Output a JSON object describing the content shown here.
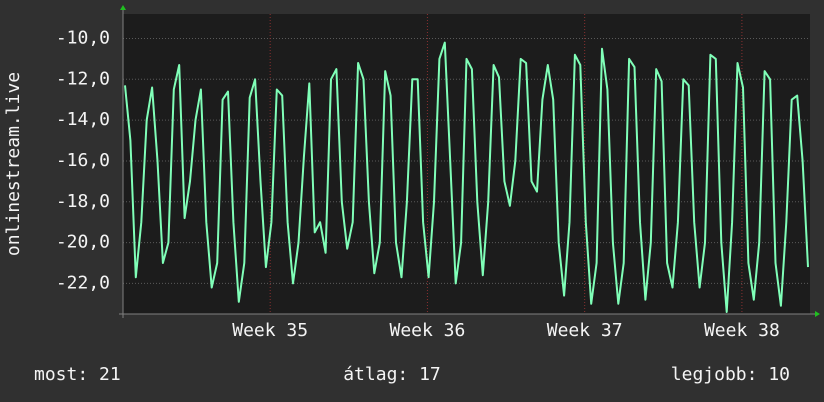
{
  "chart_data": {
    "type": "line",
    "ylabel": "onlinestream.live",
    "xlim": [
      34.064,
      38.433
    ],
    "xticks": [
      {
        "value": 35,
        "label": "Week 35"
      },
      {
        "value": 36,
        "label": "Week 36"
      },
      {
        "value": 37,
        "label": "Week 37"
      },
      {
        "value": 38,
        "label": "Week 38"
      }
    ],
    "ylim": [
      -23.5,
      -8.8
    ],
    "yticks": [
      {
        "value": -22,
        "label": "-22,0"
      },
      {
        "value": -20,
        "label": "-20,0"
      },
      {
        "value": -18,
        "label": "-18,0"
      },
      {
        "value": -16,
        "label": "-16,0"
      },
      {
        "value": -14,
        "label": "-14,0"
      },
      {
        "value": -12,
        "label": "-12,0"
      },
      {
        "value": -10,
        "label": "-10,0"
      }
    ],
    "grid": true,
    "series": [
      {
        "color": "#80ffb8",
        "values": [
          -12.3,
          -15,
          -21.7,
          -19,
          -14,
          -12.4,
          -16,
          -21,
          -20,
          -12.5,
          -11.3,
          -18.8,
          -17,
          -14,
          -12.5,
          -19,
          -22.2,
          -21,
          -13,
          -12.6,
          -19,
          -22.9,
          -21,
          -12.9,
          -12,
          -17,
          -21.2,
          -19,
          -12.5,
          -12.8,
          -19,
          -22,
          -20,
          -15.8,
          -12.2,
          -19.5,
          -19,
          -20.5,
          -12,
          -11.5,
          -18,
          -20.3,
          -19,
          -11.2,
          -12,
          -18,
          -21.5,
          -20,
          -11.6,
          -12.8,
          -20,
          -21.7,
          -18,
          -12,
          -12,
          -19,
          -21.7,
          -18,
          -11,
          -10.2,
          -16,
          -22,
          -20,
          -11,
          -11.5,
          -18,
          -21.6,
          -18,
          -11.3,
          -11.9,
          -17,
          -18.2,
          -16,
          -11,
          -11.2,
          -17,
          -17.5,
          -13,
          -11.3,
          -13,
          -20,
          -22.6,
          -19,
          -10.8,
          -11.3,
          -19,
          -23,
          -21,
          -10.5,
          -12.5,
          -20,
          -23,
          -21,
          -11,
          -11.4,
          -19,
          -22.8,
          -20,
          -11.5,
          -12.1,
          -21,
          -22.2,
          -19,
          -12,
          -12.3,
          -19,
          -22.2,
          -20,
          -10.8,
          -11,
          -20,
          -23.4,
          -19,
          -11.2,
          -12.4,
          -21,
          -22.8,
          -20,
          -11.6,
          -12,
          -21,
          -23.1,
          -19,
          -13,
          -12.8,
          -16,
          -21.2
        ]
      }
    ],
    "footer": [
      "most: 21",
      "átlag: 17",
      "legjobb: 10"
    ]
  }
}
